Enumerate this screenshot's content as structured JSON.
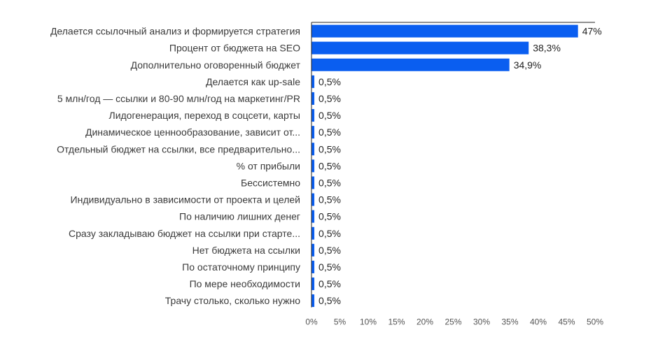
{
  "chart_data": {
    "type": "bar",
    "orientation": "horizontal",
    "title": "",
    "xlabel": "",
    "ylabel": "",
    "categories": [
      "Делается ссылочный анализ и формируется стратегия",
      "Процент от бюджета на SEO",
      "Дополнительно оговоренный бюджет",
      "Делается как up-sale",
      "5 млн/год — ссылки и 80-90 млн/год на маркетинг/PR",
      "Лидогенерация, переход в соцсети, карты",
      "Динамическое ценнообразование, зависит от...",
      "Отдельный бюджет на ссылки, все предварительно...",
      "% от прибыли",
      "Бессистемно",
      "Индивидуально в зависимости от проекта и целей",
      "По наличию лишних денег",
      "Сразу закладываю бюджет на ссылки при старте...",
      "Нет бюджета на ссылки",
      "По остаточному принципу",
      "По мере необходимости",
      "Трачу столько, сколько нужно"
    ],
    "values": [
      47,
      38.3,
      34.9,
      0.5,
      0.5,
      0.5,
      0.5,
      0.5,
      0.5,
      0.5,
      0.5,
      0.5,
      0.5,
      0.5,
      0.5,
      0.5,
      0.5
    ],
    "value_labels": [
      "47%",
      "38,3%",
      "34,9%",
      "0,5%",
      "0,5%",
      "0,5%",
      "0,5%",
      "0,5%",
      "0,5%",
      "0,5%",
      "0,5%",
      "0,5%",
      "0,5%",
      "0,5%",
      "0,5%",
      "0,5%",
      "0,5%"
    ],
    "xlim": [
      0,
      50
    ],
    "x_ticks": [
      0,
      5,
      10,
      15,
      20,
      25,
      30,
      35,
      40,
      45,
      50
    ],
    "x_tick_labels": [
      "0%",
      "5%",
      "10%",
      "15%",
      "20%",
      "25%",
      "30%",
      "35%",
      "40%",
      "45%",
      "50%"
    ],
    "grid": false,
    "legend": "none",
    "bar_color": "#0a5ef0",
    "axis_color": "#222222"
  }
}
